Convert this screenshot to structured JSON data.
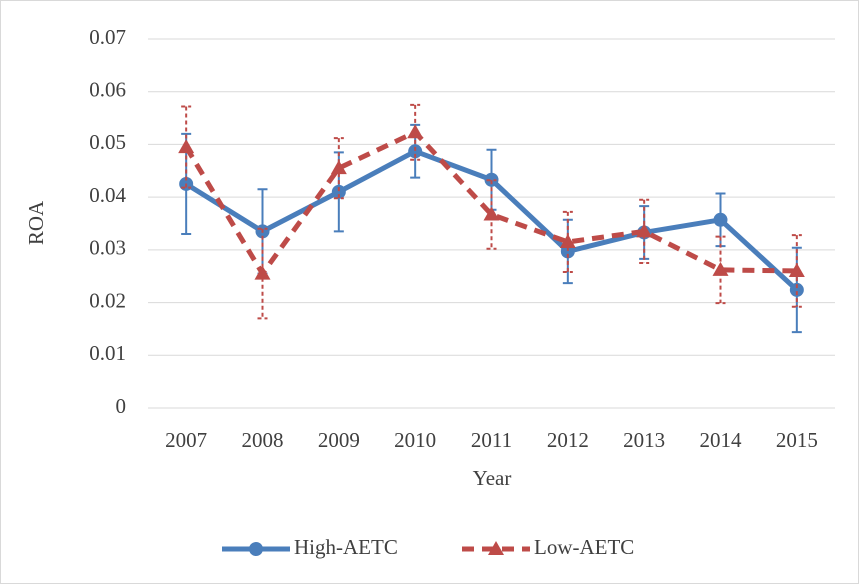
{
  "chart_data": {
    "type": "line",
    "x_label": "Year",
    "y_label": "ROA",
    "categories": [
      "2007",
      "2008",
      "2009",
      "2010",
      "2011",
      "2012",
      "2013",
      "2014",
      "2015"
    ],
    "series": [
      {
        "name": "High-AETC",
        "color": "#4a7ebb",
        "marker": "circle",
        "dash": false,
        "values": [
          0.0425,
          0.0335,
          0.041,
          0.0487,
          0.0433,
          0.0297,
          0.0333,
          0.0357,
          0.0224
        ],
        "errors": [
          0.0095,
          0.008,
          0.0075,
          0.005,
          0.0057,
          0.006,
          0.005,
          0.005,
          0.008
        ]
      },
      {
        "name": "Low-AETC",
        "color": "#be4b48",
        "marker": "triangle",
        "dash": true,
        "values": [
          0.0495,
          0.0255,
          0.0455,
          0.0523,
          0.0367,
          0.0315,
          0.0335,
          0.0262,
          0.026
        ],
        "errors": [
          0.0077,
          0.0085,
          0.0057,
          0.0052,
          0.0065,
          0.0057,
          0.006,
          0.0063,
          0.0068
        ]
      }
    ],
    "ylim": [
      0,
      0.07
    ],
    "yticks": [
      0,
      0.01,
      0.02,
      0.03,
      0.04,
      0.05,
      0.06,
      0.07
    ],
    "grid": true,
    "legend": "bottom"
  }
}
